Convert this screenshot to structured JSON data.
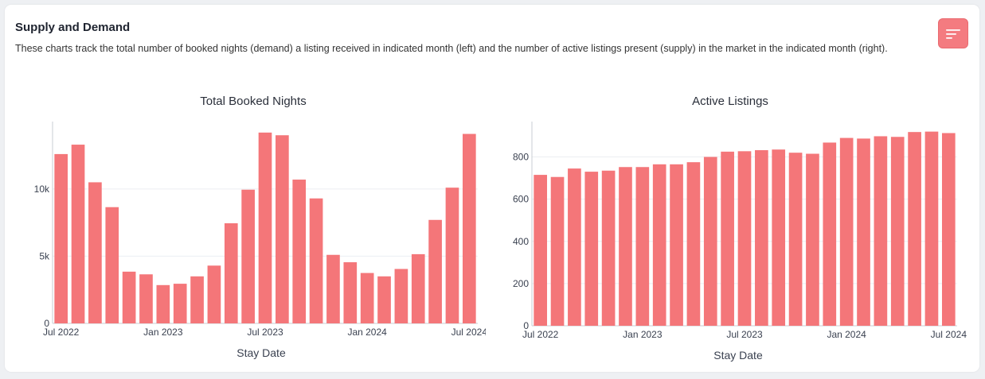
{
  "card": {
    "title": "Supply and Demand",
    "description": "These charts track the total number of booked nights (demand) a listing received in indicated month (left) and the number of active listings present (supply) in the market in the indicated month (right).",
    "menu_icon": "filter-lines-icon",
    "accent_color": "#f47679"
  },
  "chart_data": [
    {
      "type": "bar",
      "title": "Total Booked Nights",
      "xlabel": "Stay Date",
      "ylabel": "",
      "categories": [
        "2022-07",
        "2022-08",
        "2022-09",
        "2022-10",
        "2022-11",
        "2022-12",
        "2023-01",
        "2023-02",
        "2023-03",
        "2023-04",
        "2023-05",
        "2023-06",
        "2023-07",
        "2023-08",
        "2023-09",
        "2023-10",
        "2023-11",
        "2023-12",
        "2024-01",
        "2024-02",
        "2024-03",
        "2024-04",
        "2024-05",
        "2024-06",
        "2024-07"
      ],
      "values": [
        12600,
        13300,
        10500,
        8650,
        3850,
        3650,
        2850,
        2950,
        3500,
        4300,
        7450,
        9950,
        14200,
        14000,
        10700,
        9300,
        5100,
        4550,
        3750,
        3500,
        4050,
        5150,
        7700,
        10100,
        14100
      ],
      "ylim": [
        0,
        14900
      ],
      "yticks": [
        {
          "v": 0,
          "label": "0"
        },
        {
          "v": 5000,
          "label": "5k"
        },
        {
          "v": 10000,
          "label": "10k"
        }
      ],
      "xticks": [
        {
          "i": 0,
          "label": "Jul 2022"
        },
        {
          "i": 6,
          "label": "Jan 2023"
        },
        {
          "i": 12,
          "label": "Jul 2023"
        },
        {
          "i": 18,
          "label": "Jan 2024"
        },
        {
          "i": 24,
          "label": "Jul 2024"
        }
      ],
      "grid": true,
      "color": "#f47679"
    },
    {
      "type": "bar",
      "title": "Active Listings",
      "xlabel": "Stay Date",
      "ylabel": "",
      "categories": [
        "2022-07",
        "2022-08",
        "2022-09",
        "2022-10",
        "2022-11",
        "2022-12",
        "2023-01",
        "2023-02",
        "2023-03",
        "2023-04",
        "2023-05",
        "2023-06",
        "2023-07",
        "2023-08",
        "2023-09",
        "2023-10",
        "2023-11",
        "2023-12",
        "2024-01",
        "2024-02",
        "2024-03",
        "2024-04",
        "2024-05",
        "2024-06",
        "2024-07"
      ],
      "values": [
        715,
        705,
        745,
        730,
        735,
        752,
        752,
        765,
        765,
        775,
        800,
        825,
        827,
        832,
        835,
        820,
        815,
        868,
        890,
        887,
        898,
        895,
        918,
        920,
        913
      ],
      "ylim": [
        0,
        960
      ],
      "yticks": [
        {
          "v": 0,
          "label": "0"
        },
        {
          "v": 200,
          "label": "200"
        },
        {
          "v": 400,
          "label": "400"
        },
        {
          "v": 600,
          "label": "600"
        },
        {
          "v": 800,
          "label": "800"
        }
      ],
      "xticks": [
        {
          "i": 0,
          "label": "Jul 2022"
        },
        {
          "i": 6,
          "label": "Jan 2023"
        },
        {
          "i": 12,
          "label": "Jul 2023"
        },
        {
          "i": 18,
          "label": "Jan 2024"
        },
        {
          "i": 24,
          "label": "Jul 2024"
        }
      ],
      "grid": true,
      "color": "#f47679"
    }
  ]
}
